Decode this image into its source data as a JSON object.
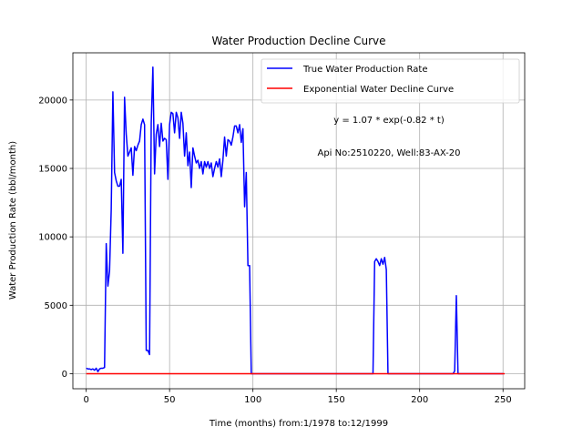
{
  "chart_data": {
    "type": "line",
    "title": "Water Production Decline Curve",
    "xlabel": "Time (months) from:1/1978 to:12/1999",
    "ylabel": "Water Production Rate (bbl/month)",
    "xlim": [
      -8,
      263
    ],
    "ylim": [
      -1100,
      23450
    ],
    "x_ticks": [
      0,
      50,
      100,
      150,
      200,
      250
    ],
    "y_ticks": [
      0,
      5000,
      10000,
      15000,
      20000
    ],
    "grid": true,
    "legend_placement": "top-right",
    "annotations": [
      "y = 1.07 * exp(-0.82 * t)",
      "Api No:2510220, Well:83-AX-20"
    ],
    "series": [
      {
        "name": "True Water Production Rate",
        "color": "#0000ff",
        "points": [
          [
            0,
            400
          ],
          [
            1,
            350
          ],
          [
            2,
            350
          ],
          [
            3,
            300
          ],
          [
            4,
            350
          ],
          [
            5,
            250
          ],
          [
            6,
            400
          ],
          [
            7,
            150
          ],
          [
            8,
            350
          ],
          [
            9,
            400
          ],
          [
            10,
            400
          ],
          [
            11,
            450
          ],
          [
            12,
            9500
          ],
          [
            13,
            6400
          ],
          [
            14,
            7500
          ],
          [
            15,
            12000
          ],
          [
            16,
            20600
          ],
          [
            17,
            14700
          ],
          [
            18,
            14100
          ],
          [
            19,
            13700
          ],
          [
            20,
            13700
          ],
          [
            21,
            14200
          ],
          [
            22,
            8800
          ],
          [
            23,
            20200
          ],
          [
            24,
            17500
          ],
          [
            25,
            15900
          ],
          [
            26,
            16200
          ],
          [
            27,
            16500
          ],
          [
            28,
            14500
          ],
          [
            29,
            16600
          ],
          [
            30,
            16300
          ],
          [
            31,
            16700
          ],
          [
            32,
            17000
          ],
          [
            33,
            18200
          ],
          [
            34,
            18600
          ],
          [
            35,
            18200
          ],
          [
            36,
            1700
          ],
          [
            37,
            1700
          ],
          [
            38,
            1400
          ],
          [
            39,
            18300
          ],
          [
            40,
            22400
          ],
          [
            41,
            14600
          ],
          [
            42,
            17500
          ],
          [
            43,
            18200
          ],
          [
            44,
            16600
          ],
          [
            45,
            18300
          ],
          [
            46,
            17000
          ],
          [
            47,
            17200
          ],
          [
            48,
            17100
          ],
          [
            49,
            14200
          ],
          [
            50,
            18200
          ],
          [
            51,
            19100
          ],
          [
            52,
            19000
          ],
          [
            53,
            17600
          ],
          [
            54,
            19100
          ],
          [
            55,
            18700
          ],
          [
            56,
            17200
          ],
          [
            57,
            19100
          ],
          [
            58,
            18300
          ],
          [
            59,
            15900
          ],
          [
            60,
            17600
          ],
          [
            61,
            15200
          ],
          [
            62,
            16200
          ],
          [
            63,
            13600
          ],
          [
            64,
            16500
          ],
          [
            65,
            15900
          ],
          [
            66,
            15400
          ],
          [
            67,
            15600
          ],
          [
            68,
            15000
          ],
          [
            69,
            15500
          ],
          [
            70,
            14600
          ],
          [
            71,
            15500
          ],
          [
            72,
            15100
          ],
          [
            73,
            15500
          ],
          [
            74,
            15000
          ],
          [
            75,
            15400
          ],
          [
            76,
            14400
          ],
          [
            77,
            15000
          ],
          [
            78,
            15500
          ],
          [
            79,
            15100
          ],
          [
            80,
            15700
          ],
          [
            81,
            14400
          ],
          [
            82,
            15600
          ],
          [
            83,
            17300
          ],
          [
            84,
            15900
          ],
          [
            85,
            17100
          ],
          [
            86,
            17000
          ],
          [
            87,
            16700
          ],
          [
            88,
            17300
          ],
          [
            89,
            18100
          ],
          [
            90,
            18100
          ],
          [
            91,
            17600
          ],
          [
            92,
            18200
          ],
          [
            93,
            16900
          ],
          [
            94,
            17900
          ],
          [
            95,
            12200
          ],
          [
            96,
            14700
          ],
          [
            97,
            7900
          ],
          [
            98,
            7900
          ],
          [
            99,
            0
          ],
          [
            100,
            0
          ],
          [
            110,
            0
          ],
          [
            120,
            0
          ],
          [
            130,
            0
          ],
          [
            140,
            0
          ],
          [
            150,
            0
          ],
          [
            160,
            0
          ],
          [
            170,
            0
          ],
          [
            172,
            0
          ],
          [
            173,
            8200
          ],
          [
            174,
            8400
          ],
          [
            175,
            8200
          ],
          [
            176,
            7900
          ],
          [
            177,
            8400
          ],
          [
            178,
            8000
          ],
          [
            179,
            8500
          ],
          [
            180,
            7600
          ],
          [
            181,
            0
          ],
          [
            190,
            0
          ],
          [
            200,
            0
          ],
          [
            210,
            0
          ],
          [
            220,
            0
          ],
          [
            221,
            200
          ],
          [
            222,
            5700
          ],
          [
            223,
            0
          ],
          [
            230,
            0
          ],
          [
            240,
            0
          ],
          [
            250,
            0
          ]
        ]
      },
      {
        "name": "Exponential Water Decline Curve",
        "color": "#ff0000",
        "points": [
          [
            0,
            1.07
          ],
          [
            1,
            0.47
          ],
          [
            2,
            0.21
          ],
          [
            5,
            0.02
          ],
          [
            10,
            0
          ],
          [
            50,
            0
          ],
          [
            100,
            0
          ],
          [
            150,
            0
          ],
          [
            200,
            0
          ],
          [
            251,
            0
          ]
        ]
      }
    ]
  }
}
